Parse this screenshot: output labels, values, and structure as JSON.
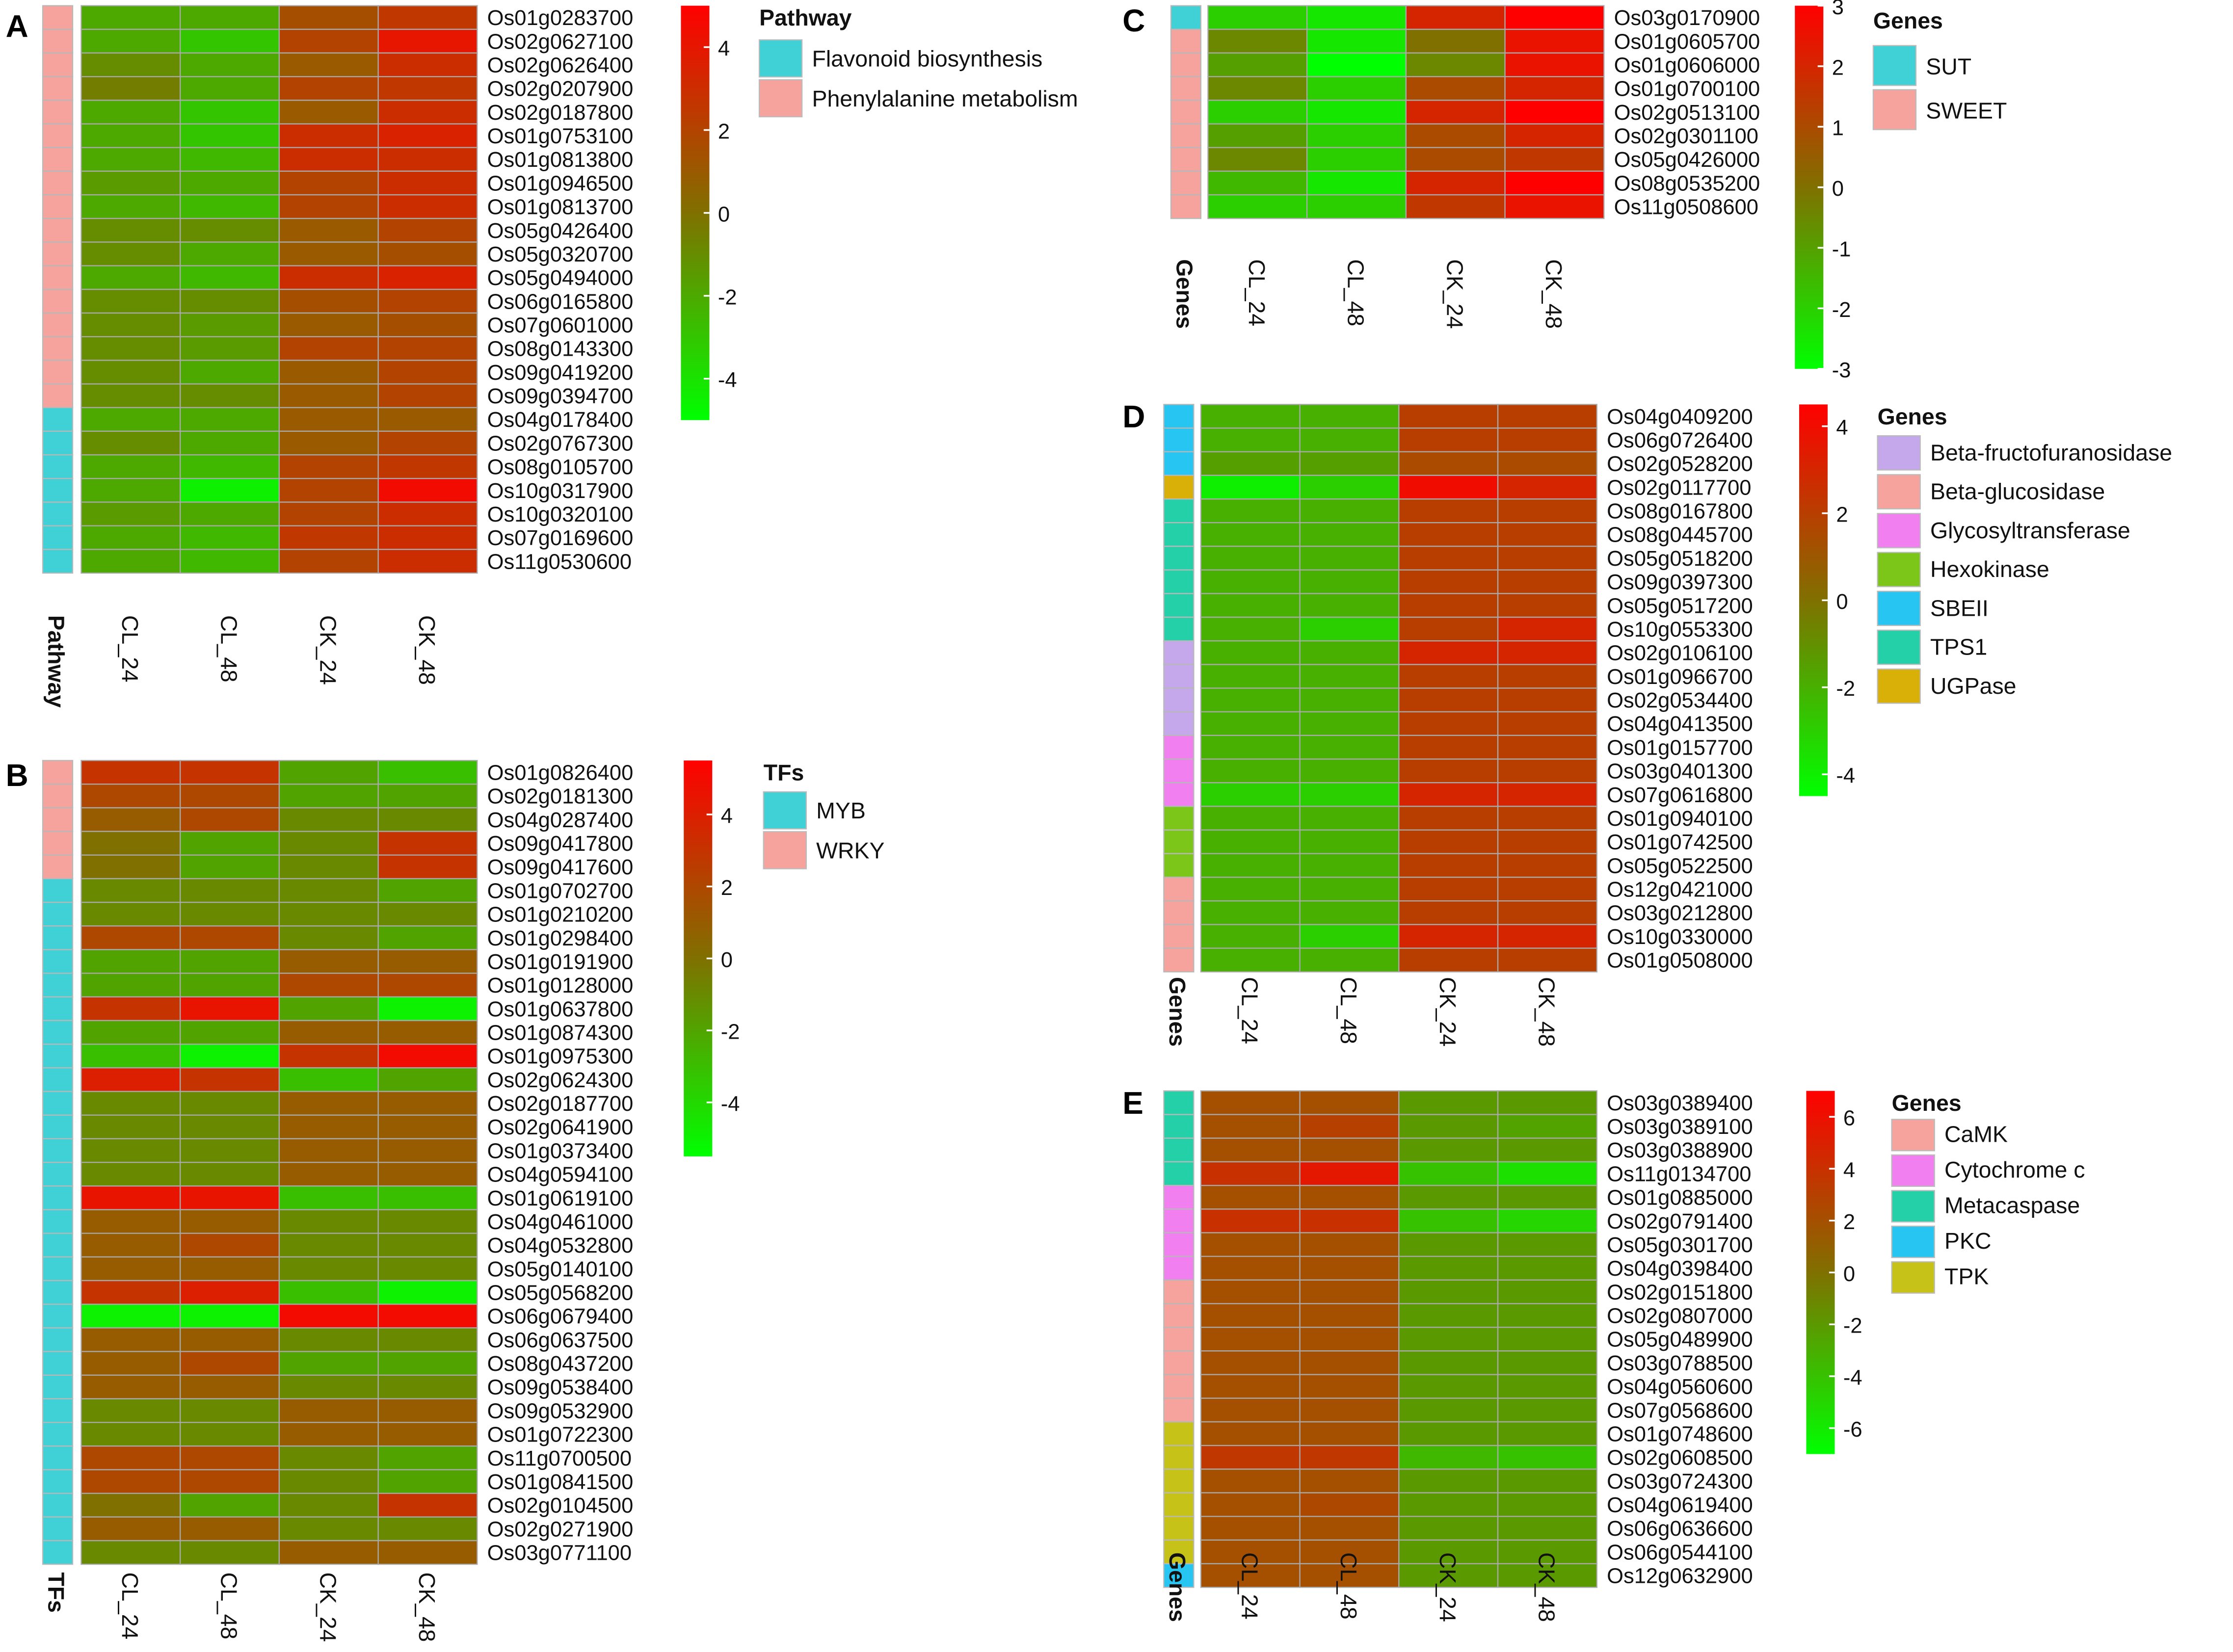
{
  "chart_data": [
    {
      "type": "heatmap",
      "panel_label": "A",
      "columns": [
        "CL_24",
        "CL_48",
        "CK_24",
        "CK_48"
      ],
      "rows": [
        "Os01g0283700",
        "Os02g0627100",
        "Os02g0626400",
        "Os02g0207900",
        "Os02g0187800",
        "Os01g0753100",
        "Os01g0813800",
        "Os01g0946500",
        "Os01g0813700",
        "Os05g0426400",
        "Os05g0320700",
        "Os05g0494000",
        "Os06g0165800",
        "Os07g0601000",
        "Os08g0143300",
        "Os09g0419200",
        "Os09g0394700",
        "Os04g0178400",
        "Os02g0767300",
        "Os08g0105700",
        "Os10g0317900",
        "Os10g0320100",
        "Os07g0169600",
        "Os11g0530600"
      ],
      "values": [
        [
          -2,
          -2,
          1.5,
          2.5
        ],
        [
          -2,
          -3,
          2,
          4
        ],
        [
          -1,
          -2,
          1,
          3
        ],
        [
          -0.5,
          -2,
          2,
          2.5
        ],
        [
          -2,
          -3,
          1,
          3
        ],
        [
          -2,
          -3,
          3,
          3.5
        ],
        [
          -2,
          -2.5,
          3,
          3
        ],
        [
          -1.5,
          -2,
          2,
          3
        ],
        [
          -2,
          -2.5,
          2,
          3
        ],
        [
          -1,
          -1,
          1,
          2
        ],
        [
          -1,
          -2,
          1,
          1.5
        ],
        [
          -2,
          -2.5,
          3,
          3.5
        ],
        [
          -1,
          -1,
          1.5,
          2
        ],
        [
          -1,
          -1.5,
          1,
          1.5
        ],
        [
          -1,
          -1.5,
          2,
          2
        ],
        [
          -1,
          -2,
          1,
          2
        ],
        [
          -1,
          -1,
          1,
          2
        ],
        [
          -2,
          -2,
          1,
          1
        ],
        [
          -1,
          -2,
          1,
          2
        ],
        [
          -2,
          -2.5,
          2,
          2.5
        ],
        [
          -2,
          -4.5,
          2,
          4.5
        ],
        [
          -1.5,
          -2,
          2,
          3
        ],
        [
          -2,
          -2.5,
          2.5,
          3
        ],
        [
          -2,
          -2.5,
          2,
          3
        ]
      ],
      "annotation_title": "Pathway",
      "annotation": [
        1,
        1,
        1,
        1,
        1,
        1,
        1,
        1,
        1,
        1,
        1,
        1,
        1,
        1,
        1,
        1,
        1,
        0,
        0,
        0,
        0,
        0,
        0,
        0
      ],
      "legend_title": "Pathway",
      "legend": [
        {
          "label": "Flavonoid biosynthesis",
          "color": "#3fd1d6"
        },
        {
          "label": "Phenylalanine metabolism",
          "color": "#f6a39d"
        }
      ],
      "scale_min": -5,
      "scale_max": 5,
      "ticks": [
        4,
        2,
        0,
        -2,
        -4
      ],
      "tick_labels": [
        "4",
        "2",
        "0",
        "-2",
        "-4"
      ]
    },
    {
      "type": "heatmap",
      "panel_label": "B",
      "columns": [
        "CL_24",
        "CL_48",
        "CK_24",
        "CK_48"
      ],
      "rows": [
        "Os01g0826400",
        "Os02g0181300",
        "Os04g0287400",
        "Os09g0417800",
        "Os09g0417600",
        "Os01g0702700",
        "Os01g0210200",
        "Os01g0298400",
        "Os01g0191900",
        "Os01g0128000",
        "Os01g0637800",
        "Os01g0874300",
        "Os01g0975300",
        "Os02g0624300",
        "Os02g0187700",
        "Os02g0641900",
        "Os01g0373400",
        "Os04g0594100",
        "Os01g0619100",
        "Os04g0461000",
        "Os04g0532800",
        "Os05g0140100",
        "Os05g0568200",
        "Os06g0679400",
        "Os06g0637500",
        "Os08g0437200",
        "Os09g0538400",
        "Os09g0532900",
        "Os01g0722300",
        "Os11g0700500",
        "Os01g0841500",
        "Os02g0104500",
        "Os02g0271900",
        "Os03g0771100"
      ],
      "values": [
        [
          3,
          3,
          -2,
          -3
        ],
        [
          2,
          2,
          -2,
          -2
        ],
        [
          1,
          2,
          -1,
          -1
        ],
        [
          0,
          -2,
          -1,
          3
        ],
        [
          0,
          -2,
          -1,
          3
        ],
        [
          -1,
          -1,
          -1,
          -2
        ],
        [
          -1,
          -1,
          -1,
          -1
        ],
        [
          2,
          2,
          -1,
          -2
        ],
        [
          -2,
          -2,
          1,
          1
        ],
        [
          -2,
          -2,
          2,
          2
        ],
        [
          3,
          4.5,
          -2,
          -5
        ],
        [
          -2,
          -2,
          1,
          1
        ],
        [
          -3,
          -5,
          3,
          5
        ],
        [
          4,
          3,
          -3,
          -2
        ],
        [
          -1,
          -1,
          1,
          1
        ],
        [
          -1,
          -1,
          1,
          1
        ],
        [
          -1,
          -1,
          1,
          1
        ],
        [
          -1,
          -1,
          1,
          1
        ],
        [
          4.5,
          4.5,
          -3,
          -3
        ],
        [
          1,
          1,
          -1,
          -1
        ],
        [
          1,
          2,
          -1,
          -1
        ],
        [
          1,
          1,
          -1,
          -1
        ],
        [
          3,
          4,
          -3,
          -5
        ],
        [
          -5,
          -5,
          5,
          5
        ],
        [
          1,
          1,
          -1,
          -1
        ],
        [
          1,
          2,
          -2,
          -2
        ],
        [
          1,
          1,
          -1,
          -1
        ],
        [
          -1,
          -1,
          1,
          1
        ],
        [
          -1,
          -1,
          1,
          1
        ],
        [
          2,
          2,
          -1,
          -2
        ],
        [
          2,
          2,
          -1,
          -2
        ],
        [
          0,
          -2,
          -1,
          3
        ],
        [
          1,
          1,
          -1,
          -1
        ],
        [
          -1,
          -1,
          1,
          1
        ]
      ],
      "annotation_title": "TFs",
      "annotation": [
        1,
        1,
        1,
        1,
        1,
        0,
        0,
        0,
        0,
        0,
        0,
        0,
        0,
        0,
        0,
        0,
        0,
        0,
        0,
        0,
        0,
        0,
        0,
        0,
        0,
        0,
        0,
        0,
        0,
        0,
        0,
        0,
        0,
        0
      ],
      "legend_title": "TFs",
      "legend": [
        {
          "label": "MYB",
          "color": "#3fd1d6"
        },
        {
          "label": "WRKY",
          "color": "#f6a39d"
        }
      ],
      "scale_min": -5.5,
      "scale_max": 5.5,
      "ticks": [
        4,
        2,
        0,
        -2,
        -4
      ],
      "tick_labels": [
        "4",
        "2",
        "0",
        "-2",
        "-4"
      ]
    },
    {
      "type": "heatmap",
      "panel_label": "C",
      "columns": [
        "CL_24",
        "CL_48",
        "CK_24",
        "CK_48"
      ],
      "rows": [
        "Os03g0170900",
        "Os01g0605700",
        "Os01g0606000",
        "Os01g0700100",
        "Os02g0513100",
        "Os02g0301100",
        "Os05g0426000",
        "Os08g0535200",
        "Os11g0508600"
      ],
      "values": [
        [
          -2,
          -2.5,
          2,
          3
        ],
        [
          -0.5,
          -2.5,
          0,
          2.5
        ],
        [
          -1,
          -3,
          -0.5,
          2.5
        ],
        [
          -0.5,
          -2,
          1,
          2
        ],
        [
          -2,
          -2.5,
          2,
          3
        ],
        [
          -1,
          -2,
          1,
          2
        ],
        [
          -0.5,
          -2,
          1,
          1.5
        ],
        [
          -1.5,
          -2.5,
          2,
          3
        ],
        [
          -2,
          -2,
          1.5,
          2.5
        ]
      ],
      "annotation_title": "Genes",
      "annotation": [
        0,
        1,
        1,
        1,
        1,
        1,
        1,
        1,
        1
      ],
      "legend_title": "Genes",
      "legend": [
        {
          "label": "SUT",
          "color": "#3fd1d6"
        },
        {
          "label": "SWEET",
          "color": "#f6a39d"
        }
      ],
      "scale_min": -3,
      "scale_max": 3,
      "ticks": [
        3,
        2,
        1,
        0,
        -1,
        -2,
        -3
      ],
      "tick_labels": [
        "3",
        "2",
        "1",
        "0",
        "-1",
        "-2",
        "-3"
      ]
    },
    {
      "type": "heatmap",
      "panel_label": "D",
      "columns": [
        "CL_24",
        "CL_48",
        "CK_24",
        "CK_48"
      ],
      "rows": [
        "Os04g0409200",
        "Os06g0726400",
        "Os02g0528200",
        "Os02g0117700",
        "Os08g0167800",
        "Os08g0445700",
        "Os05g0518200",
        "Os09g0397300",
        "Os05g0517200",
        "Os10g0553300",
        "Os02g0106100",
        "Os01g0966700",
        "Os02g0534400",
        "Os04g0413500",
        "Os01g0157700",
        "Os03g0401300",
        "Os07g0616800",
        "Os01g0940100",
        "Os01g0742500",
        "Os05g0522500",
        "Os12g0421000",
        "Os03g0212800",
        "Os10g0330000",
        "Os01g0508000"
      ],
      "values": [
        [
          -2,
          -2,
          2,
          2
        ],
        [
          -2,
          -2,
          2,
          2
        ],
        [
          -1.5,
          -1.5,
          1.5,
          1.5
        ],
        [
          -4,
          -3,
          4,
          3
        ],
        [
          -2,
          -2,
          2,
          2
        ],
        [
          -2,
          -2,
          2,
          2
        ],
        [
          -2,
          -2,
          2,
          2
        ],
        [
          -2,
          -2,
          2,
          2
        ],
        [
          -2,
          -2,
          2,
          2
        ],
        [
          -2,
          -3,
          2,
          3
        ],
        [
          -2,
          -2,
          3,
          3
        ],
        [
          -2,
          -2,
          2,
          2
        ],
        [
          -2,
          -2,
          2,
          2
        ],
        [
          -2,
          -2,
          2,
          2
        ],
        [
          -2,
          -2,
          2,
          2
        ],
        [
          -2,
          -2,
          2,
          2
        ],
        [
          -3,
          -3,
          3,
          3
        ],
        [
          -2,
          -2,
          2,
          2
        ],
        [
          -2,
          -2,
          2,
          2
        ],
        [
          -2,
          -2,
          2,
          2
        ],
        [
          -2,
          -2,
          2,
          2
        ],
        [
          -2,
          -2,
          2,
          2
        ],
        [
          -2,
          -3,
          3,
          3
        ],
        [
          -2,
          -2,
          2,
          2
        ]
      ],
      "annotation_title": "Genes",
      "annotation": [
        4,
        4,
        4,
        6,
        5,
        5,
        5,
        5,
        5,
        5,
        0,
        0,
        0,
        0,
        2,
        2,
        2,
        3,
        3,
        3,
        1,
        1,
        1,
        1
      ],
      "legend_title": "Genes",
      "legend": [
        {
          "label": "Beta-fructofuranosidase",
          "color": "#c5a8ec"
        },
        {
          "label": "Beta-glucosidase",
          "color": "#f6a39d"
        },
        {
          "label": "Glycosyltransferase",
          "color": "#f27fef"
        },
        {
          "label": "Hexokinase",
          "color": "#7cc61a"
        },
        {
          "label": "SBEII",
          "color": "#27c6f2"
        },
        {
          "label": "TPS1",
          "color": "#23d0a8"
        },
        {
          "label": "UGPase",
          "color": "#d9b008"
        }
      ],
      "scale_min": -4.5,
      "scale_max": 4.5,
      "ticks": [
        4,
        2,
        0,
        -2,
        -4
      ],
      "tick_labels": [
        "4",
        "2",
        "0",
        "-2",
        "-4"
      ]
    },
    {
      "type": "heatmap",
      "panel_label": "E",
      "columns": [
        "CL_24",
        "CL_48",
        "CK_24",
        "CK_48"
      ],
      "rows": [
        "Os03g0389400",
        "Os03g0389100",
        "Os03g0388900",
        "Os11g0134700",
        "Os01g0885000",
        "Os02g0791400",
        "Os05g0301700",
        "Os04g0398400",
        "Os02g0151800",
        "Os02g0807000",
        "Os05g0489900",
        "Os03g0788500",
        "Os04g0560600",
        "Os07g0568600",
        "Os01g0748600",
        "Os02g0608500",
        "Os03g0724300",
        "Os04g0619400",
        "Os06g0636600",
        "Os06g0544100",
        "Os12g0632900"
      ],
      "values": [
        [
          2,
          2,
          -2,
          -2
        ],
        [
          2,
          3,
          -2,
          -2.5
        ],
        [
          2,
          2,
          -2,
          -2
        ],
        [
          4,
          5.5,
          -4,
          -5.5
        ],
        [
          2,
          2,
          -2,
          -2
        ],
        [
          4,
          4,
          -4,
          -5
        ],
        [
          2,
          2,
          -2,
          -2
        ],
        [
          2,
          2,
          -2,
          -2
        ],
        [
          2,
          2,
          -2,
          -2
        ],
        [
          2,
          2,
          -2,
          -2
        ],
        [
          2,
          2,
          -2,
          -2
        ],
        [
          2,
          2,
          -2,
          -2
        ],
        [
          2,
          2,
          -2,
          -2
        ],
        [
          2,
          2,
          -2,
          -2
        ],
        [
          2,
          2,
          -2,
          -2
        ],
        [
          3.5,
          3.5,
          -3.5,
          -4
        ],
        [
          2,
          2,
          -2,
          -2
        ],
        [
          2,
          2.5,
          -2,
          -2
        ],
        [
          2,
          2,
          -2,
          -2
        ],
        [
          2,
          2,
          -2,
          -2
        ],
        [
          2,
          2,
          -2,
          -2
        ]
      ],
      "annotation_title": "Genes",
      "annotation": [
        2,
        2,
        2,
        2,
        1,
        1,
        1,
        1,
        0,
        0,
        0,
        0,
        0,
        0,
        4,
        4,
        4,
        4,
        4,
        4,
        3
      ],
      "legend_title": "Genes",
      "legend": [
        {
          "label": "CaMK",
          "color": "#f6a39d"
        },
        {
          "label": "Cytochrome c",
          "color": "#f27fef"
        },
        {
          "label": "Metacaspase",
          "color": "#23d0a8"
        },
        {
          "label": "PKC",
          "color": "#27c6f2"
        },
        {
          "label": "TPK",
          "color": "#c6c218"
        }
      ],
      "scale_min": -7,
      "scale_max": 7,
      "ticks": [
        6,
        4,
        2,
        0,
        -2,
        -4,
        -6
      ],
      "tick_labels": [
        "6",
        "4",
        "2",
        "0",
        "-2",
        "-4",
        "-6"
      ]
    }
  ]
}
